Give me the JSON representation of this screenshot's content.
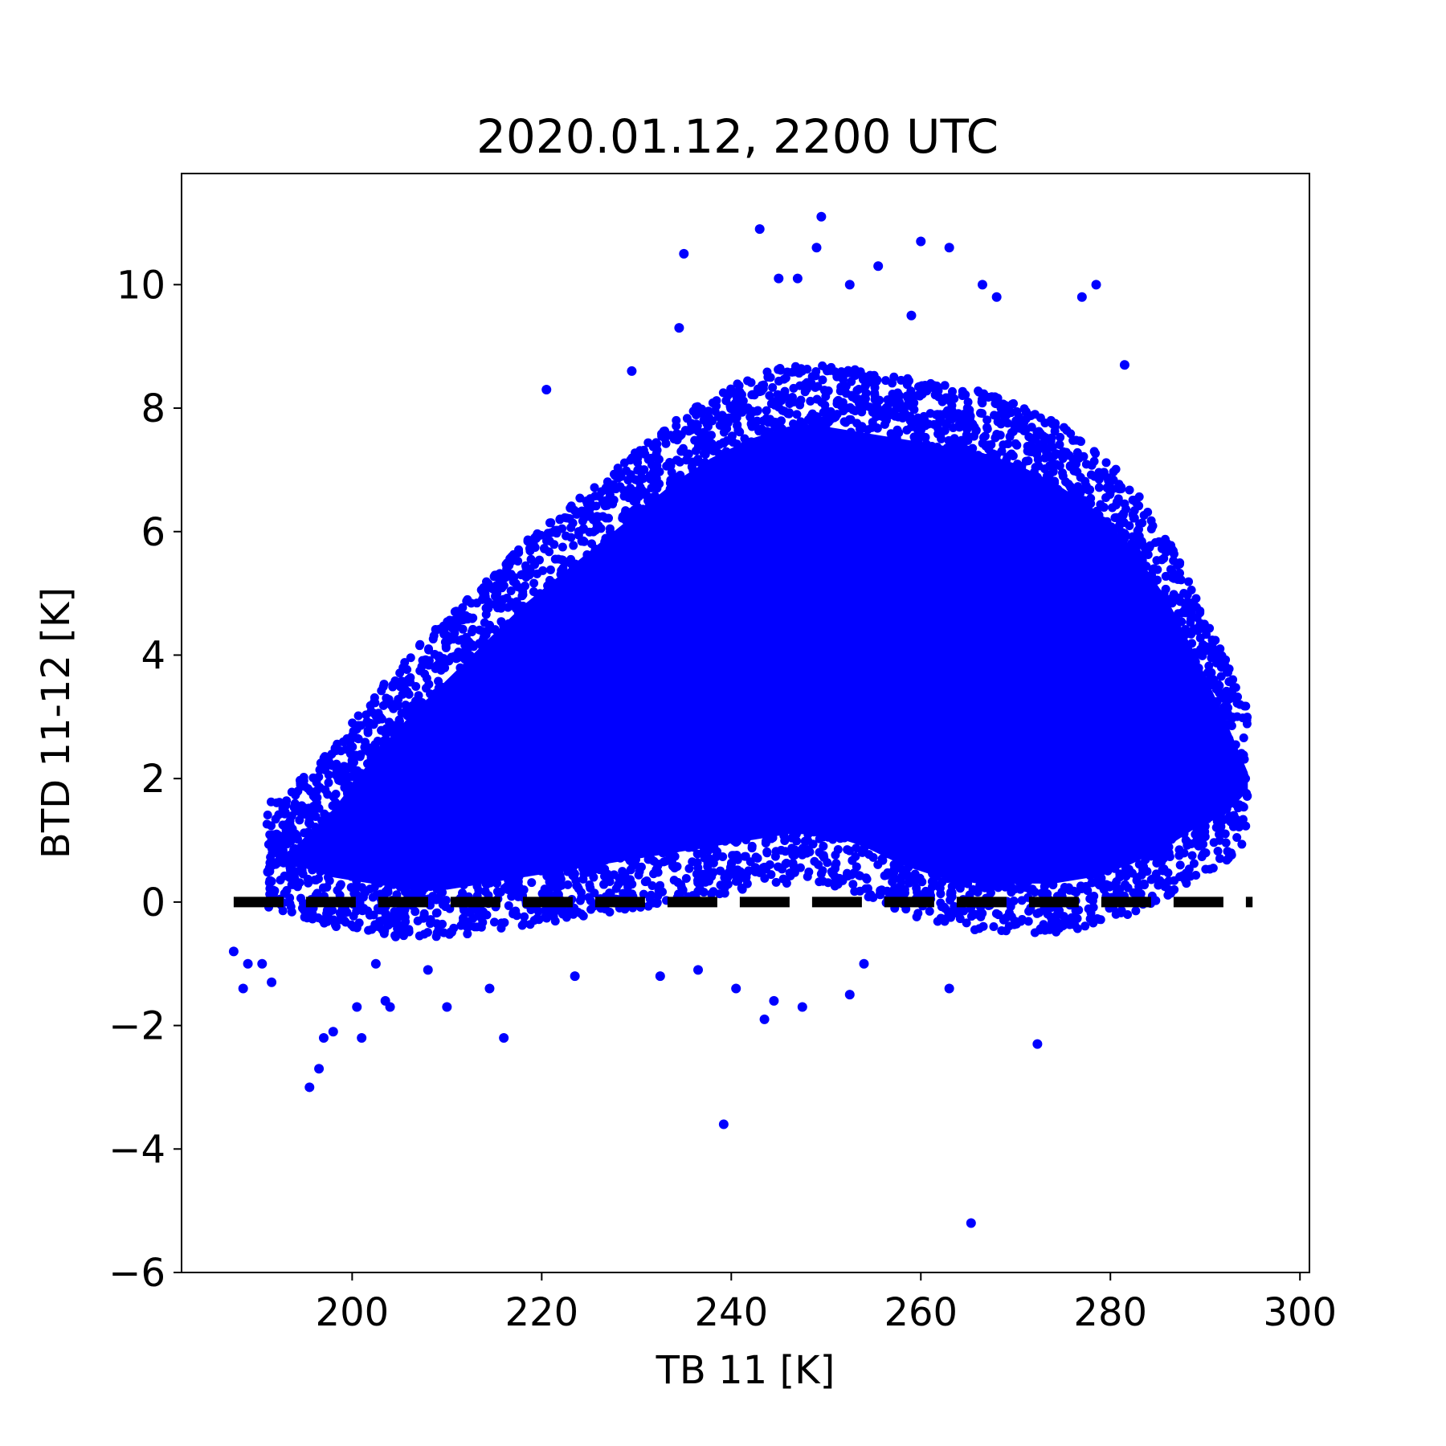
{
  "chart_data": {
    "type": "scatter",
    "title": "2020.01.12, 2200 UTC",
    "xlabel": "TB 11 [K]",
    "ylabel": "BTD 11-12 [K]",
    "xlim": [
      182,
      301
    ],
    "ylim": [
      -6,
      11.8
    ],
    "xticks": [
      200,
      220,
      240,
      260,
      280,
      300
    ],
    "yticks": [
      -6,
      -4,
      -2,
      0,
      2,
      4,
      6,
      8,
      10
    ],
    "xtick_labels": [
      "200",
      "220",
      "240",
      "260",
      "280",
      "300"
    ],
    "ytick_labels": [
      "−6",
      "−4",
      "−2",
      "0",
      "2",
      "4",
      "6",
      "8",
      "10"
    ],
    "grid": false,
    "legend": "none",
    "point_color": "#0000ff",
    "reference_line": {
      "y": 0,
      "x_range": [
        187.5,
        295
      ],
      "style": "dashed",
      "color": "#000000"
    },
    "density_envelope": {
      "x": [
        191,
        194,
        198,
        202,
        206,
        210,
        214,
        218,
        222,
        226,
        230,
        234,
        238,
        242,
        246,
        250,
        254,
        258,
        262,
        266,
        270,
        274,
        278,
        282,
        286,
        289,
        292,
        294.5
      ],
      "y_upper": [
        1.2,
        1.5,
        2.1,
        2.9,
        3.6,
        4.2,
        4.8,
        5.4,
        5.9,
        6.4,
        6.9,
        7.4,
        7.8,
        8.1,
        8.3,
        8.3,
        8.2,
        8.1,
        8.0,
        7.9,
        7.7,
        7.4,
        7.0,
        6.4,
        5.5,
        4.6,
        3.6,
        2.7
      ],
      "y_lower": [
        0.3,
        0.2,
        0.0,
        -0.1,
        -0.2,
        -0.2,
        -0.1,
        0.0,
        0.1,
        0.2,
        0.3,
        0.4,
        0.5,
        0.6,
        0.7,
        0.7,
        0.5,
        0.2,
        0.0,
        -0.1,
        -0.1,
        -0.1,
        0.0,
        0.2,
        0.5,
        0.8,
        1.0,
        1.4
      ]
    },
    "outliers": [
      {
        "x": 187.5,
        "y": -0.8
      },
      {
        "x": 188.5,
        "y": -1.4
      },
      {
        "x": 189,
        "y": -1.0
      },
      {
        "x": 190.5,
        "y": -1.0
      },
      {
        "x": 191.5,
        "y": -1.3
      },
      {
        "x": 195.5,
        "y": -3.0
      },
      {
        "x": 196.5,
        "y": -2.7
      },
      {
        "x": 197,
        "y": -2.2
      },
      {
        "x": 198,
        "y": -2.1
      },
      {
        "x": 200.5,
        "y": -1.7
      },
      {
        "x": 201,
        "y": -2.2
      },
      {
        "x": 202.5,
        "y": -1.0
      },
      {
        "x": 203.5,
        "y": -1.6
      },
      {
        "x": 204,
        "y": -1.7
      },
      {
        "x": 208,
        "y": -1.1
      },
      {
        "x": 210,
        "y": -1.7
      },
      {
        "x": 214.5,
        "y": -1.4
      },
      {
        "x": 216,
        "y": -2.2
      },
      {
        "x": 223.5,
        "y": -1.2
      },
      {
        "x": 232.5,
        "y": -1.2
      },
      {
        "x": 236.5,
        "y": -1.1
      },
      {
        "x": 239.2,
        "y": -3.6
      },
      {
        "x": 240.5,
        "y": -1.4
      },
      {
        "x": 243.5,
        "y": -1.9
      },
      {
        "x": 244.5,
        "y": -1.6
      },
      {
        "x": 247.5,
        "y": -1.7
      },
      {
        "x": 252.5,
        "y": -1.5
      },
      {
        "x": 254,
        "y": -1.0
      },
      {
        "x": 263,
        "y": -1.4
      },
      {
        "x": 265.3,
        "y": -5.2
      },
      {
        "x": 272.3,
        "y": -2.3
      },
      {
        "x": 245,
        "y": 10.1
      },
      {
        "x": 243,
        "y": 10.9
      },
      {
        "x": 249.5,
        "y": 11.1
      },
      {
        "x": 249,
        "y": 10.6
      },
      {
        "x": 235,
        "y": 10.5
      },
      {
        "x": 255.5,
        "y": 10.3
      },
      {
        "x": 260,
        "y": 10.7
      },
      {
        "x": 263,
        "y": 10.6
      },
      {
        "x": 266.5,
        "y": 10.0
      },
      {
        "x": 268,
        "y": 9.8
      },
      {
        "x": 277,
        "y": 9.8
      },
      {
        "x": 278.5,
        "y": 10.0
      },
      {
        "x": 220.5,
        "y": 8.3
      },
      {
        "x": 229.5,
        "y": 8.6
      },
      {
        "x": 281.5,
        "y": 8.7
      },
      {
        "x": 234.5,
        "y": 9.3
      },
      {
        "x": 252.5,
        "y": 10.0
      },
      {
        "x": 259,
        "y": 9.5
      },
      {
        "x": 247,
        "y": 10.1
      }
    ]
  }
}
